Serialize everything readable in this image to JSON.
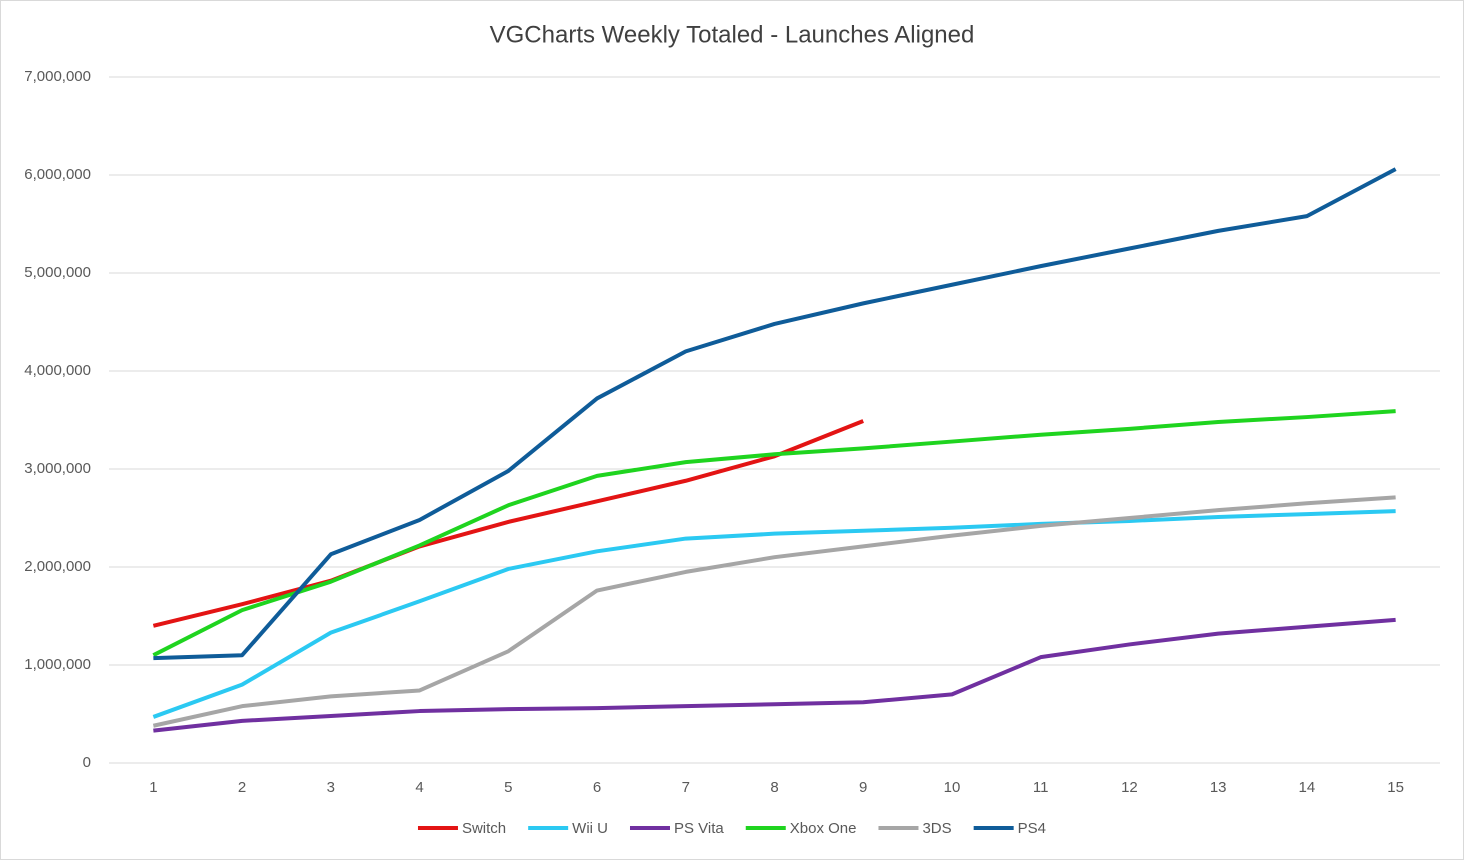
{
  "chart_data": {
    "type": "line",
    "title": "VGCharts Weekly Totaled - Launches Aligned",
    "categories": [
      "1",
      "2",
      "3",
      "4",
      "5",
      "6",
      "7",
      "8",
      "9",
      "10",
      "11",
      "12",
      "13",
      "14",
      "15"
    ],
    "ylim": [
      0,
      7000000
    ],
    "yticks": [
      0,
      {
        "value": 1000000,
        "label": "1,000,000"
      },
      {
        "value": 2000000,
        "label": "2,000,000"
      },
      {
        "value": 3000000,
        "label": "3,000,000"
      },
      {
        "value": 4000000,
        "label": "4,000,000"
      },
      {
        "value": 5000000,
        "label": "5,000,000"
      },
      {
        "value": 6000000,
        "label": "6,000,000"
      },
      {
        "value": 7000000,
        "label": "7,000,000"
      }
    ],
    "grid": true,
    "legend": "bottom",
    "series": [
      {
        "name": "Switch",
        "color": "#e31414",
        "values": [
          1400000,
          1620000,
          1860000,
          2210000,
          2460000,
          2670000,
          2880000,
          3130000,
          3490000,
          null,
          null,
          null,
          null,
          null,
          null
        ]
      },
      {
        "name": "Wii U",
        "color": "#2bc9f2",
        "values": [
          470000,
          800000,
          1330000,
          1650000,
          1980000,
          2160000,
          2290000,
          2340000,
          2370000,
          2400000,
          2440000,
          2470000,
          2510000,
          2540000,
          2570000
        ]
      },
      {
        "name": "PS Vita",
        "color": "#7030a0",
        "values": [
          330000,
          430000,
          480000,
          530000,
          550000,
          560000,
          580000,
          600000,
          620000,
          700000,
          1080000,
          1210000,
          1320000,
          1390000,
          1460000
        ]
      },
      {
        "name": "Xbox One",
        "color": "#1fd41f",
        "values": [
          1100000,
          1560000,
          1850000,
          2220000,
          2630000,
          2930000,
          3070000,
          3150000,
          3210000,
          3280000,
          3350000,
          3410000,
          3480000,
          3530000,
          3590000
        ]
      },
      {
        "name": "3DS",
        "color": "#a6a6a6",
        "values": [
          380000,
          580000,
          680000,
          740000,
          1140000,
          1760000,
          1950000,
          2100000,
          2210000,
          2320000,
          2420000,
          2500000,
          2580000,
          2650000,
          2710000
        ]
      },
      {
        "name": "PS4",
        "color": "#0f5c99",
        "values": [
          1070000,
          1100000,
          2130000,
          2480000,
          2980000,
          3720000,
          4200000,
          4480000,
          4690000,
          4880000,
          5070000,
          5250000,
          5430000,
          5580000,
          6060000
        ]
      }
    ]
  }
}
